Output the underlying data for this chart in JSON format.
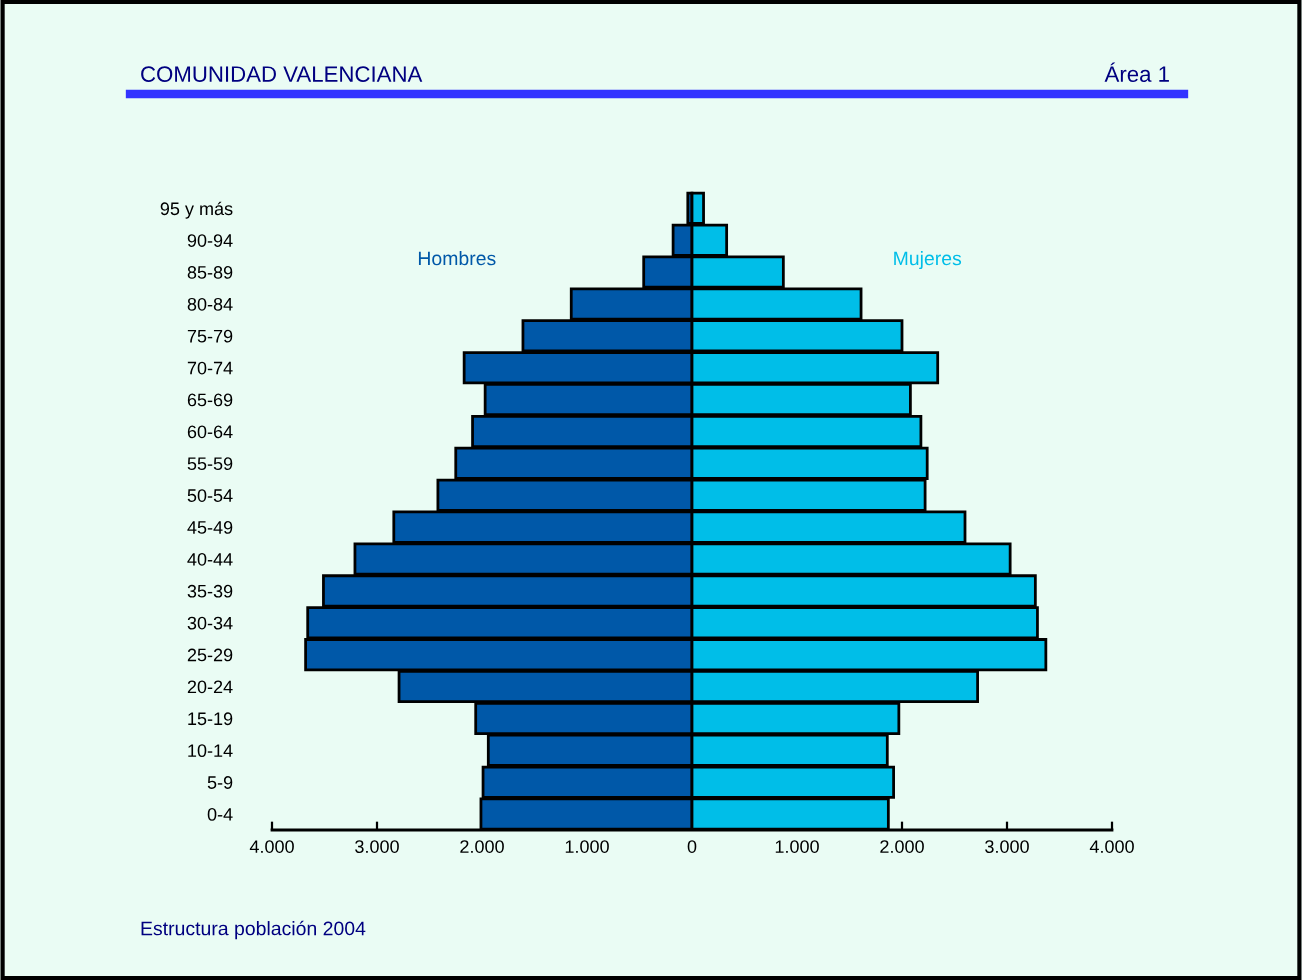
{
  "chart_data": {
    "type": "bar",
    "orientation": "horizontal",
    "stacked": true,
    "title": "COMUNIDAD VALENCIANA",
    "subtitle": "Área 1",
    "categories": [
      "95 y más",
      "90-94",
      "85-89",
      "80-84",
      "75-79",
      "70-74",
      "65-69",
      "60-64",
      "55-59",
      "50-54",
      "45-49",
      "40-44",
      "35-39",
      "30-34",
      "25-29",
      "20-24",
      "15-19",
      "10-14",
      "5-9",
      "0-4"
    ],
    "series": [
      {
        "name": "Hombres",
        "color": "#0058a8",
        "values": [
          -40,
          -180,
          -460,
          -1150,
          -1610,
          -2170,
          -1970,
          -2090,
          -2250,
          -2420,
          -2840,
          -3210,
          -3510,
          -3660,
          -3680,
          -2790,
          -2060,
          -1940,
          -1990,
          -2010
        ]
      },
      {
        "name": "Mujeres",
        "color": "#00bee8",
        "values": [
          110,
          330,
          870,
          1610,
          2000,
          2340,
          2080,
          2180,
          2240,
          2220,
          2600,
          3030,
          3270,
          3290,
          3370,
          2720,
          1970,
          1860,
          1920,
          1870
        ]
      }
    ],
    "xlim": [
      -4000,
      4000
    ],
    "xticks": [
      {
        "value": -4000,
        "label": "4.000"
      },
      {
        "value": -3000,
        "label": "3.000"
      },
      {
        "value": -2000,
        "label": "2.000"
      },
      {
        "value": -1000,
        "label": "1.000"
      },
      0,
      {
        "value": 1000,
        "label": "1.000"
      },
      {
        "value": 2000,
        "label": "2.000"
      },
      {
        "value": 3000,
        "label": "3.000"
      },
      {
        "value": 4000,
        "label": "4.000"
      }
    ],
    "grid": false,
    "legend": false,
    "annotations": [
      "Estructura población 2004"
    ]
  }
}
